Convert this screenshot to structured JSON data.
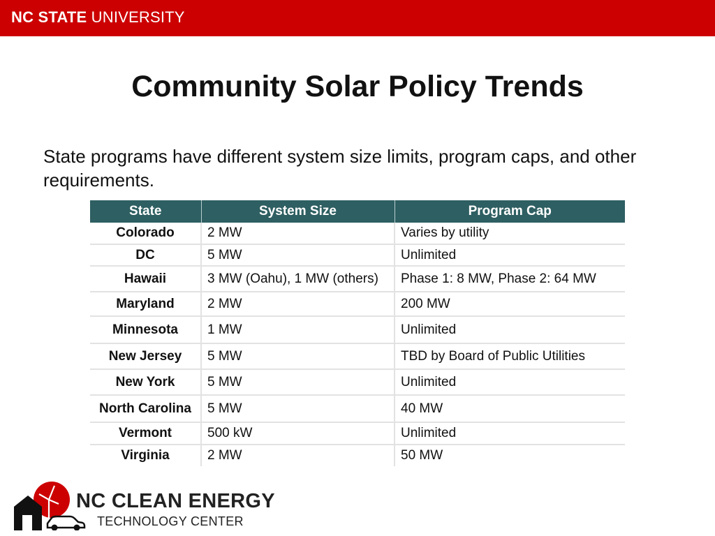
{
  "header": {
    "university_bold": "NC STATE",
    "university_rest": " UNIVERSITY"
  },
  "slide": {
    "title": "Community Solar Policy Trends",
    "subtitle": "State programs have different system size limits, program caps, and other requirements."
  },
  "table": {
    "headers": [
      "State",
      "System Size",
      "Program Cap"
    ],
    "rows": [
      {
        "state": "Colorado",
        "size": "2 MW",
        "cap": "Varies by utility"
      },
      {
        "state": "DC",
        "size": "5 MW",
        "cap": "Unlimited"
      },
      {
        "state": "Hawaii",
        "size": "3 MW (Oahu), 1 MW (others)",
        "cap": "Phase 1: 8 MW, Phase 2: 64 MW"
      },
      {
        "state": "Maryland",
        "size": "2 MW",
        "cap": "200 MW"
      },
      {
        "state": "Minnesota",
        "size": "1 MW",
        "cap": "Unlimited"
      },
      {
        "state": "New Jersey",
        "size": "5 MW",
        "cap": "TBD by Board of Public Utilities"
      },
      {
        "state": "New York",
        "size": "5 MW",
        "cap": "Unlimited"
      },
      {
        "state": "North Carolina",
        "size": "5 MW",
        "cap": "40 MW"
      },
      {
        "state": "Vermont",
        "size": "500 kW",
        "cap": "Unlimited"
      },
      {
        "state": "Virginia",
        "size": "2 MW",
        "cap": "50 MW"
      }
    ]
  },
  "footer_logo": {
    "line1": "NC CLEAN ENERGY",
    "line2": "TECHNOLOGY CENTER",
    "icon": "solar-house-car-icon"
  },
  "colors": {
    "brand_red": "#cc0000",
    "table_header": "#2e5f62"
  }
}
